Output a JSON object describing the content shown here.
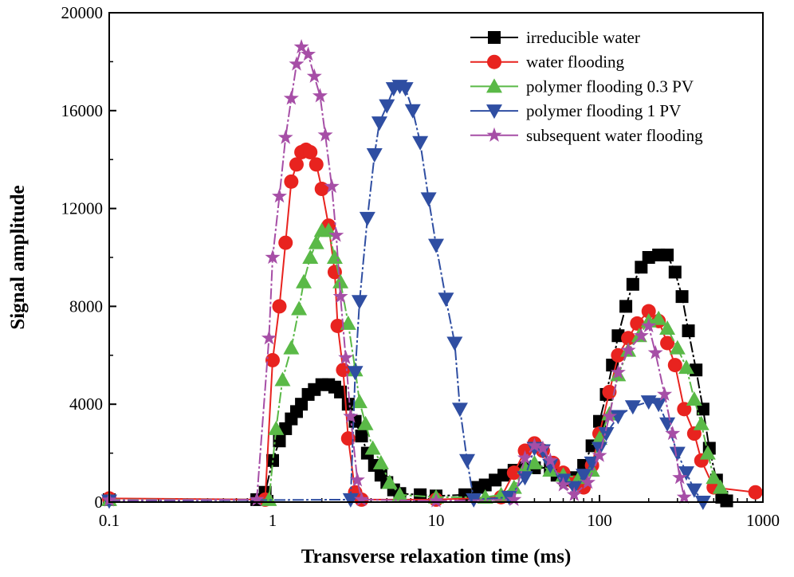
{
  "chart_data": {
    "type": "line",
    "title": "",
    "xlabel": "Transverse relaxation time (ms)",
    "ylabel": "Signal amplitude",
    "xscale": "log",
    "xlim": [
      0.1,
      1000
    ],
    "ylim": [
      0,
      20000
    ],
    "xticks": [
      "0.1",
      "1",
      "10",
      "100",
      "1000"
    ],
    "yticks": [
      "0",
      "4000",
      "8000",
      "12000",
      "16000",
      "20000"
    ],
    "grid": false,
    "legend_position": "top-right",
    "series": [
      {
        "name": "irreducible water",
        "color": "#000000",
        "marker": "square",
        "points": [
          [
            0.1,
            100
          ],
          [
            0.8,
            100
          ],
          [
            0.9,
            400
          ],
          [
            1.0,
            1700
          ],
          [
            1.1,
            2500
          ],
          [
            1.2,
            3000
          ],
          [
            1.3,
            3400
          ],
          [
            1.4,
            3700
          ],
          [
            1.5,
            4000
          ],
          [
            1.65,
            4400
          ],
          [
            1.8,
            4600
          ],
          [
            2.0,
            4800
          ],
          [
            2.2,
            4800
          ],
          [
            2.4,
            4700
          ],
          [
            2.6,
            4500
          ],
          [
            2.9,
            4000
          ],
          [
            3.2,
            3300
          ],
          [
            3.5,
            2700
          ],
          [
            3.8,
            2000
          ],
          [
            4.2,
            1500
          ],
          [
            4.6,
            1100
          ],
          [
            5.0,
            800
          ],
          [
            5.5,
            500
          ],
          [
            6.0,
            350
          ],
          [
            8,
            300
          ],
          [
            10,
            250
          ],
          [
            15,
            300
          ],
          [
            18,
            600
          ],
          [
            20,
            700
          ],
          [
            23,
            900
          ],
          [
            26,
            1100
          ],
          [
            30,
            1300
          ],
          [
            35,
            1400
          ],
          [
            40,
            1400
          ],
          [
            50,
            1400
          ],
          [
            55,
            1100
          ],
          [
            62,
            900
          ],
          [
            70,
            1000
          ],
          [
            80,
            1500
          ],
          [
            90,
            2300
          ],
          [
            100,
            3300
          ],
          [
            110,
            4400
          ],
          [
            120,
            5600
          ],
          [
            130,
            6800
          ],
          [
            145,
            8000
          ],
          [
            160,
            8900
          ],
          [
            180,
            9600
          ],
          [
            200,
            10000
          ],
          [
            230,
            10100
          ],
          [
            260,
            10100
          ],
          [
            290,
            9400
          ],
          [
            320,
            8400
          ],
          [
            350,
            7000
          ],
          [
            390,
            5400
          ],
          [
            430,
            3800
          ],
          [
            470,
            2200
          ],
          [
            520,
            900
          ],
          [
            560,
            200
          ],
          [
            600,
            50
          ]
        ]
      },
      {
        "name": "water flooding",
        "color": "#e8231f",
        "marker": "circle",
        "points": [
          [
            0.1,
            150
          ],
          [
            0.9,
            100
          ],
          [
            1.0,
            5800
          ],
          [
            1.1,
            8000
          ],
          [
            1.2,
            10600
          ],
          [
            1.3,
            13100
          ],
          [
            1.4,
            13800
          ],
          [
            1.5,
            14300
          ],
          [
            1.6,
            14400
          ],
          [
            1.7,
            14300
          ],
          [
            1.85,
            13800
          ],
          [
            2.0,
            12800
          ],
          [
            2.2,
            11300
          ],
          [
            2.4,
            9400
          ],
          [
            2.5,
            7200
          ],
          [
            2.7,
            5400
          ],
          [
            2.9,
            2600
          ],
          [
            3.2,
            400
          ],
          [
            3.5,
            100
          ],
          [
            10,
            100
          ],
          [
            25,
            200
          ],
          [
            30,
            1200
          ],
          [
            35,
            2100
          ],
          [
            40,
            2400
          ],
          [
            45,
            2100
          ],
          [
            52,
            1600
          ],
          [
            60,
            1200
          ],
          [
            70,
            800
          ],
          [
            80,
            600
          ],
          [
            90,
            1500
          ],
          [
            100,
            2800
          ],
          [
            115,
            4500
          ],
          [
            130,
            6000
          ],
          [
            150,
            6700
          ],
          [
            170,
            7300
          ],
          [
            200,
            7800
          ],
          [
            230,
            7400
          ],
          [
            260,
            6500
          ],
          [
            290,
            5600
          ],
          [
            330,
            3800
          ],
          [
            380,
            2800
          ],
          [
            420,
            1700
          ],
          [
            500,
            600
          ],
          [
            900,
            400
          ]
        ]
      },
      {
        "name": "polymer flooding 0.3 PV",
        "color": "#5ab947",
        "marker": "triangle-up",
        "points": [
          [
            0.1,
            100
          ],
          [
            0.95,
            100
          ],
          [
            1.05,
            3000
          ],
          [
            1.15,
            5000
          ],
          [
            1.3,
            6300
          ],
          [
            1.45,
            7900
          ],
          [
            1.55,
            9000
          ],
          [
            1.7,
            10000
          ],
          [
            1.85,
            10600
          ],
          [
            2.0,
            11100
          ],
          [
            2.2,
            11100
          ],
          [
            2.4,
            10000
          ],
          [
            2.6,
            9000
          ],
          [
            2.9,
            7300
          ],
          [
            3.2,
            5400
          ],
          [
            3.4,
            4100
          ],
          [
            3.7,
            3200
          ],
          [
            4.1,
            2200
          ],
          [
            4.6,
            1600
          ],
          [
            5.2,
            800
          ],
          [
            6,
            300
          ],
          [
            10,
            200
          ],
          [
            20,
            200
          ],
          [
            25,
            300
          ],
          [
            30,
            600
          ],
          [
            35,
            1400
          ],
          [
            40,
            1600
          ],
          [
            50,
            1300
          ],
          [
            60,
            1100
          ],
          [
            75,
            1000
          ],
          [
            90,
            1300
          ],
          [
            100,
            2600
          ],
          [
            115,
            3600
          ],
          [
            130,
            5200
          ],
          [
            150,
            6200
          ],
          [
            175,
            6800
          ],
          [
            200,
            7400
          ],
          [
            230,
            7500
          ],
          [
            260,
            7100
          ],
          [
            300,
            6300
          ],
          [
            340,
            5500
          ],
          [
            380,
            4200
          ],
          [
            420,
            3200
          ],
          [
            460,
            2000
          ],
          [
            500,
            1000
          ],
          [
            550,
            600
          ]
        ]
      },
      {
        "name": "polymer flooding 1 PV",
        "color": "#2f4ea2",
        "marker": "triangle-down",
        "points": [
          [
            0.1,
            50
          ],
          [
            3.0,
            100
          ],
          [
            3.2,
            5300
          ],
          [
            3.4,
            8200
          ],
          [
            3.8,
            11600
          ],
          [
            4.2,
            14200
          ],
          [
            4.5,
            15500
          ],
          [
            5.0,
            16200
          ],
          [
            5.5,
            16900
          ],
          [
            6.0,
            17000
          ],
          [
            6.5,
            16900
          ],
          [
            7.2,
            16000
          ],
          [
            8.0,
            14700
          ],
          [
            9.0,
            12400
          ],
          [
            10,
            10500
          ],
          [
            11.5,
            8300
          ],
          [
            13,
            6500
          ],
          [
            14,
            3800
          ],
          [
            15.5,
            1700
          ],
          [
            17,
            100
          ],
          [
            28,
            200
          ],
          [
            35,
            1000
          ],
          [
            40,
            2200
          ],
          [
            45,
            2100
          ],
          [
            50,
            1500
          ],
          [
            60,
            900
          ],
          [
            70,
            600
          ],
          [
            80,
            1100
          ],
          [
            90,
            1600
          ],
          [
            100,
            2200
          ],
          [
            110,
            2800
          ],
          [
            130,
            3500
          ],
          [
            160,
            3900
          ],
          [
            200,
            4100
          ],
          [
            230,
            4000
          ],
          [
            260,
            3200
          ],
          [
            300,
            2000
          ],
          [
            340,
            1200
          ],
          [
            380,
            500
          ],
          [
            430,
            0
          ]
        ]
      },
      {
        "name": "subsequent water flooding",
        "color": "#a64ea6",
        "marker": "star",
        "points": [
          [
            0.1,
            80
          ],
          [
            0.8,
            100
          ],
          [
            0.95,
            6700
          ],
          [
            1.0,
            10000
          ],
          [
            1.1,
            12500
          ],
          [
            1.2,
            14900
          ],
          [
            1.3,
            16500
          ],
          [
            1.4,
            17900
          ],
          [
            1.5,
            18600
          ],
          [
            1.65,
            18300
          ],
          [
            1.8,
            17400
          ],
          [
            1.95,
            16600
          ],
          [
            2.1,
            15000
          ],
          [
            2.3,
            12900
          ],
          [
            2.45,
            10900
          ],
          [
            2.6,
            8400
          ],
          [
            2.8,
            5900
          ],
          [
            3.0,
            3500
          ],
          [
            3.3,
            900
          ],
          [
            3.5,
            100
          ],
          [
            10,
            50
          ],
          [
            30,
            100
          ],
          [
            35,
            1800
          ],
          [
            40,
            2300
          ],
          [
            45,
            2200
          ],
          [
            50,
            1700
          ],
          [
            60,
            700
          ],
          [
            70,
            300
          ],
          [
            85,
            800
          ],
          [
            100,
            1900
          ],
          [
            115,
            3500
          ],
          [
            130,
            5300
          ],
          [
            150,
            6200
          ],
          [
            180,
            6800
          ],
          [
            200,
            7200
          ],
          [
            220,
            6100
          ],
          [
            250,
            4400
          ],
          [
            280,
            2800
          ],
          [
            310,
            1000
          ],
          [
            330,
            200
          ]
        ]
      }
    ]
  }
}
